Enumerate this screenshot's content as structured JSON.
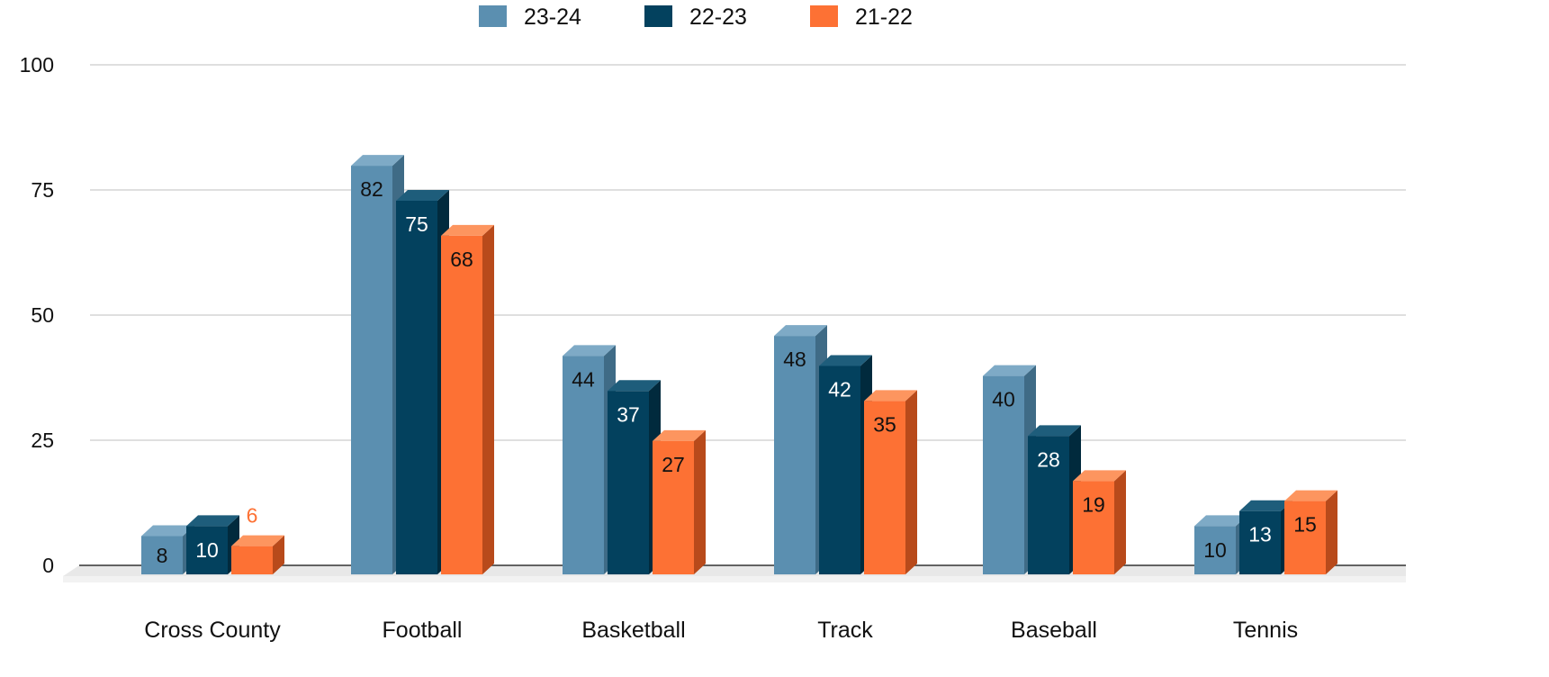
{
  "chart_data": {
    "type": "bar",
    "categories": [
      "Cross County",
      "Football",
      "Basketball",
      "Track",
      "Baseball",
      "Tennis"
    ],
    "series": [
      {
        "name": "23-24",
        "values": [
          8,
          82,
          44,
          48,
          40,
          10
        ],
        "color": "#5b8fb0",
        "side": "#3f6b86",
        "top": "#7eaac6"
      },
      {
        "name": "22-23",
        "values": [
          10,
          75,
          37,
          42,
          28,
          13
        ],
        "color": "#03415e",
        "side": "#012a3d",
        "top": "#1e5d7b"
      },
      {
        "name": "21-22",
        "values": [
          6,
          68,
          27,
          35,
          19,
          15
        ],
        "color": "#fd7134",
        "side": "#b84a1b",
        "top": "#fd955f"
      }
    ],
    "data_labels": [
      [
        "8",
        "82",
        "44",
        "48",
        "40",
        "10"
      ],
      [
        "10",
        "75",
        "37",
        "42",
        "28",
        "13"
      ],
      [
        "6",
        "68",
        "27",
        "35",
        "19",
        "15"
      ]
    ],
    "label_colors": {
      "23-24": "#111111",
      "22-23": "#ffffff",
      "21-22": "#111111",
      "outside": "#fd7134"
    },
    "y_ticks": [
      "0",
      "25",
      "50",
      "75",
      "100"
    ],
    "ylim": [
      0,
      100
    ],
    "grid": true,
    "legend_position": "top-center",
    "style": "3d-columns",
    "title": "",
    "xlabel": "",
    "ylabel": ""
  }
}
